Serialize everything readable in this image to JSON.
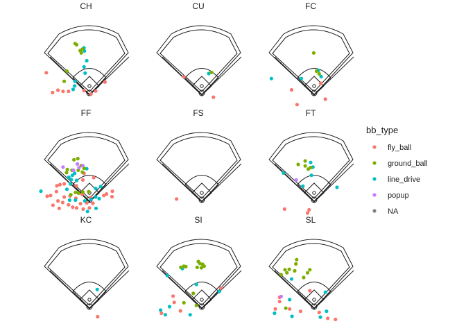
{
  "chart_data": {
    "type": "scatter",
    "description_units": "hit coordinates (hc_x, hc_y), y inverted",
    "xlim": [
      0,
      250
    ],
    "ylim": [
      -250,
      0
    ],
    "legend": {
      "title": "bb_type",
      "position": "right",
      "entries": [
        {
          "label": "fly_ball",
          "color": "#F8766D"
        },
        {
          "label": "ground_ball",
          "color": "#7CAE00"
        },
        {
          "label": "line_drive",
          "color": "#00BFC4"
        },
        {
          "label": "popup",
          "color": "#C77CFF"
        },
        {
          "label": "NA",
          "color": "#7F7F7F"
        }
      ]
    },
    "panels": [
      {
        "label": "CH",
        "points": [
          {
            "x": 30,
            "y": -215,
            "type": "fly_ball"
          },
          {
            "x": 44,
            "y": -209,
            "type": "fly_ball"
          },
          {
            "x": 57,
            "y": -212,
            "type": "fly_ball"
          },
          {
            "x": 71,
            "y": -212,
            "type": "fly_ball"
          },
          {
            "x": 111,
            "y": -210,
            "type": "fly_ball"
          },
          {
            "x": 129,
            "y": -219,
            "type": "fly_ball"
          },
          {
            "x": 141,
            "y": -211,
            "type": "fly_ball"
          },
          {
            "x": 165,
            "y": -188,
            "type": "fly_ball"
          },
          {
            "x": 14,
            "y": -164,
            "type": "fly_ball"
          },
          {
            "x": 83,
            "y": -207,
            "type": "line_drive"
          },
          {
            "x": 87,
            "y": -198,
            "type": "line_drive"
          },
          {
            "x": 88,
            "y": -186,
            "type": "line_drive"
          },
          {
            "x": 114,
            "y": -165,
            "type": "line_drive"
          },
          {
            "x": 111,
            "y": -149,
            "type": "line_drive"
          },
          {
            "x": 118,
            "y": -133,
            "type": "line_drive"
          },
          {
            "x": 112,
            "y": -108,
            "type": "line_drive"
          },
          {
            "x": 111,
            "y": -100,
            "type": "line_drive"
          },
          {
            "x": 60,
            "y": -186,
            "type": "ground_ball"
          },
          {
            "x": 67,
            "y": -160,
            "type": "ground_ball"
          },
          {
            "x": 104,
            "y": -113,
            "type": "ground_ball"
          },
          {
            "x": 101,
            "y": -107,
            "type": "ground_ball"
          },
          {
            "x": 107,
            "y": -103,
            "type": "ground_ball"
          },
          {
            "x": 88,
            "y": -89,
            "type": "ground_ball"
          },
          {
            "x": 92,
            "y": -92,
            "type": "ground_ball"
          }
        ]
      },
      {
        "label": "CU",
        "points": [
          {
            "x": 155,
            "y": -227,
            "type": "fly_ball"
          },
          {
            "x": 79,
            "y": -175,
            "type": "fly_ball"
          },
          {
            "x": 143,
            "y": -166,
            "type": "line_drive"
          },
          {
            "x": 150,
            "y": -163,
            "type": "ground_ball"
          }
        ]
      },
      {
        "label": "FC",
        "points": [
          {
            "x": 81,
            "y": -246,
            "type": "fly_ball"
          },
          {
            "x": 154,
            "y": -232,
            "type": "fly_ball"
          },
          {
            "x": 67,
            "y": -208,
            "type": "fly_ball"
          },
          {
            "x": 142,
            "y": -191,
            "type": "fly_ball"
          },
          {
            "x": 15,
            "y": -179,
            "type": "line_drive"
          },
          {
            "x": 92,
            "y": -179,
            "type": "line_drive"
          },
          {
            "x": 143,
            "y": -174,
            "type": "line_drive"
          },
          {
            "x": 136,
            "y": -158,
            "type": "line_drive"
          },
          {
            "x": 138,
            "y": -167,
            "type": "ground_ball"
          },
          {
            "x": 131,
            "y": -160,
            "type": "ground_ball"
          },
          {
            "x": 124,
            "y": -113,
            "type": "ground_ball"
          }
        ]
      },
      {
        "label": "FF",
        "points": [
          {
            "x": 47,
            "y": -238,
            "type": "fly_ball"
          },
          {
            "x": 82,
            "y": -235,
            "type": "fly_ball"
          },
          {
            "x": 92,
            "y": -237,
            "type": "fly_ball"
          },
          {
            "x": 109,
            "y": -240,
            "type": "fly_ball"
          },
          {
            "x": 125,
            "y": -237,
            "type": "fly_ball"
          },
          {
            "x": 31,
            "y": -230,
            "type": "fly_ball"
          },
          {
            "x": 44,
            "y": -219,
            "type": "fly_ball"
          },
          {
            "x": 56,
            "y": -223,
            "type": "fly_ball"
          },
          {
            "x": 71,
            "y": -229,
            "type": "fly_ball"
          },
          {
            "x": 102,
            "y": -226,
            "type": "fly_ball"
          },
          {
            "x": 118,
            "y": -224,
            "type": "fly_ball"
          },
          {
            "x": 134,
            "y": -225,
            "type": "fly_ball"
          },
          {
            "x": 60,
            "y": -209,
            "type": "fly_ball"
          },
          {
            "x": 75,
            "y": -206,
            "type": "fly_ball"
          },
          {
            "x": 90,
            "y": -212,
            "type": "fly_ball"
          },
          {
            "x": 106,
            "y": -202,
            "type": "fly_ball"
          },
          {
            "x": 128,
            "y": -210,
            "type": "fly_ball"
          },
          {
            "x": 162,
            "y": -205,
            "type": "fly_ball"
          },
          {
            "x": 169,
            "y": -201,
            "type": "fly_ball"
          },
          {
            "x": 183,
            "y": -208,
            "type": "fly_ball"
          },
          {
            "x": 184,
            "y": -194,
            "type": "fly_ball"
          },
          {
            "x": 25,
            "y": -205,
            "type": "fly_ball"
          },
          {
            "x": 16,
            "y": -207,
            "type": "fly_ball"
          },
          {
            "x": 40,
            "y": -195,
            "type": "fly_ball"
          },
          {
            "x": 41,
            "y": -180,
            "type": "fly_ball"
          },
          {
            "x": 49,
            "y": -177,
            "type": "fly_ball"
          },
          {
            "x": 60,
            "y": -175,
            "type": "fly_ball"
          },
          {
            "x": 91,
            "y": -180,
            "type": "fly_ball"
          },
          {
            "x": 108,
            "y": -165,
            "type": "fly_ball"
          },
          {
            "x": 111,
            "y": -148,
            "type": "fly_ball"
          },
          {
            "x": 136,
            "y": -159,
            "type": "fly_ball"
          },
          {
            "x": 120,
            "y": -246,
            "type": "line_drive"
          },
          {
            "x": 142,
            "y": -238,
            "type": "line_drive"
          },
          {
            "x": 74,
            "y": -217,
            "type": "line_drive"
          },
          {
            "x": 89,
            "y": -217,
            "type": "line_drive"
          },
          {
            "x": 113,
            "y": -219,
            "type": "line_drive"
          },
          {
            "x": 129,
            "y": -215,
            "type": "line_drive"
          },
          {
            "x": 141,
            "y": -209,
            "type": "line_drive"
          },
          {
            "x": 150,
            "y": -213,
            "type": "line_drive"
          },
          {
            "x": 0,
            "y": -194,
            "type": "line_drive"
          },
          {
            "x": 67,
            "y": -189,
            "type": "line_drive"
          },
          {
            "x": 141,
            "y": -187,
            "type": "line_drive"
          },
          {
            "x": 154,
            "y": -182,
            "type": "line_drive"
          },
          {
            "x": 76,
            "y": -175,
            "type": "line_drive"
          },
          {
            "x": 78,
            "y": -164,
            "type": "line_drive"
          },
          {
            "x": 72,
            "y": -158,
            "type": "line_drive"
          },
          {
            "x": 81,
            "y": -153,
            "type": "line_drive"
          },
          {
            "x": 92,
            "y": -166,
            "type": "line_drive"
          },
          {
            "x": 87,
            "y": -148,
            "type": "line_drive"
          },
          {
            "x": 118,
            "y": -136,
            "type": "line_drive"
          },
          {
            "x": 77,
            "y": -203,
            "type": "ground_ball"
          },
          {
            "x": 89,
            "y": -197,
            "type": "ground_ball"
          },
          {
            "x": 97,
            "y": -199,
            "type": "ground_ball"
          },
          {
            "x": 108,
            "y": -196,
            "type": "ground_ball"
          },
          {
            "x": 123,
            "y": -195,
            "type": "ground_ball"
          },
          {
            "x": 66,
            "y": -146,
            "type": "ground_ball"
          },
          {
            "x": 68,
            "y": -138,
            "type": "ground_ball"
          },
          {
            "x": 80,
            "y": -140,
            "type": "ground_ball"
          },
          {
            "x": 96,
            "y": -140,
            "type": "ground_ball"
          },
          {
            "x": 107,
            "y": -145,
            "type": "ground_ball"
          },
          {
            "x": 111,
            "y": -135,
            "type": "ground_ball"
          },
          {
            "x": 104,
            "y": -128,
            "type": "ground_ball"
          },
          {
            "x": 85,
            "y": -113,
            "type": "ground_ball"
          },
          {
            "x": 95,
            "y": -110,
            "type": "ground_ball"
          },
          {
            "x": 57,
            "y": -132,
            "type": "popup"
          },
          {
            "x": 84,
            "y": -140,
            "type": "popup"
          },
          {
            "x": 98,
            "y": -133,
            "type": "popup"
          },
          {
            "x": 108,
            "y": -128,
            "type": "popup"
          },
          {
            "x": 94,
            "y": -124,
            "type": "popup"
          }
        ]
      },
      {
        "label": "FS",
        "points": [
          {
            "x": 60,
            "y": -214,
            "type": "fly_ball"
          }
        ]
      },
      {
        "label": "FT",
        "points": [
          {
            "x": 108,
            "y": -250,
            "type": "fly_ball"
          },
          {
            "x": 112,
            "y": -242,
            "type": "fly_ball"
          },
          {
            "x": 49,
            "y": -240,
            "type": "fly_ball"
          },
          {
            "x": 96,
            "y": -181,
            "type": "line_drive"
          },
          {
            "x": 184,
            "y": -184,
            "type": "line_drive"
          },
          {
            "x": 46,
            "y": -147,
            "type": "line_drive"
          },
          {
            "x": 118,
            "y": -153,
            "type": "line_drive"
          },
          {
            "x": 122,
            "y": -132,
            "type": "line_drive"
          },
          {
            "x": 116,
            "y": -120,
            "type": "line_drive"
          },
          {
            "x": 110,
            "y": -137,
            "type": "ground_ball"
          },
          {
            "x": 102,
            "y": -129,
            "type": "ground_ball"
          },
          {
            "x": 116,
            "y": -133,
            "type": "ground_ball"
          },
          {
            "x": 84,
            "y": -125,
            "type": "ground_ball"
          },
          {
            "x": 102,
            "y": -116,
            "type": "ground_ball"
          },
          {
            "x": 79,
            "y": -165,
            "type": "popup"
          }
        ]
      },
      {
        "label": "KC",
        "points": [
          {
            "x": 146,
            "y": -242,
            "type": "fly_ball"
          },
          {
            "x": 145,
            "y": -172,
            "type": "line_drive"
          }
        ]
      },
      {
        "label": "SI",
        "points": [
          {
            "x": 21,
            "y": -233,
            "type": "fly_ball"
          },
          {
            "x": 70,
            "y": -227,
            "type": "fly_ball"
          },
          {
            "x": 54,
            "y": -205,
            "type": "fly_ball"
          },
          {
            "x": 51,
            "y": -189,
            "type": "fly_ball"
          },
          {
            "x": 174,
            "y": -168,
            "type": "fly_ball"
          },
          {
            "x": 31,
            "y": -237,
            "type": "line_drive"
          },
          {
            "x": 95,
            "y": -237,
            "type": "line_drive"
          },
          {
            "x": 19,
            "y": -225,
            "type": "line_drive"
          },
          {
            "x": 42,
            "y": -216,
            "type": "line_drive"
          },
          {
            "x": 170,
            "y": -177,
            "type": "line_drive"
          },
          {
            "x": 111,
            "y": -159,
            "type": "line_drive"
          },
          {
            "x": 36,
            "y": -136,
            "type": "line_drive"
          },
          {
            "x": 75,
            "y": -118,
            "type": "line_drive"
          },
          {
            "x": 79,
            "y": -206,
            "type": "ground_ball"
          },
          {
            "x": 111,
            "y": -213,
            "type": "ground_ball"
          },
          {
            "x": 103,
            "y": -182,
            "type": "ground_ball"
          },
          {
            "x": 71,
            "y": -115,
            "type": "ground_ball"
          },
          {
            "x": 79,
            "y": -112,
            "type": "ground_ball"
          },
          {
            "x": 84,
            "y": -113,
            "type": "ground_ball"
          },
          {
            "x": 113,
            "y": -115,
            "type": "ground_ball"
          },
          {
            "x": 124,
            "y": -116,
            "type": "ground_ball"
          },
          {
            "x": 131,
            "y": -112,
            "type": "ground_ball"
          },
          {
            "x": 127,
            "y": -107,
            "type": "ground_ball"
          },
          {
            "x": 120,
            "y": -105,
            "type": "ground_ball"
          },
          {
            "x": 116,
            "y": -100,
            "type": "ground_ball"
          }
        ]
      },
      {
        "label": "SL",
        "points": [
          {
            "x": 160,
            "y": -246,
            "type": "fly_ball"
          },
          {
            "x": 180,
            "y": -249,
            "type": "fly_ball"
          },
          {
            "x": 25,
            "y": -222,
            "type": "fly_ball"
          },
          {
            "x": 62,
            "y": -222,
            "type": "fly_ball"
          },
          {
            "x": 90,
            "y": -228,
            "type": "fly_ball"
          },
          {
            "x": 138,
            "y": -231,
            "type": "fly_ball"
          },
          {
            "x": 36,
            "y": -203,
            "type": "fly_ball"
          },
          {
            "x": 36,
            "y": -192,
            "type": "fly_ball"
          },
          {
            "x": 114,
            "y": -175,
            "type": "fly_ball"
          },
          {
            "x": 141,
            "y": -243,
            "type": "line_drive"
          },
          {
            "x": 157,
            "y": -228,
            "type": "line_drive"
          },
          {
            "x": 23,
            "y": -233,
            "type": "line_drive"
          },
          {
            "x": 68,
            "y": -241,
            "type": "line_drive"
          },
          {
            "x": 62,
            "y": -198,
            "type": "line_drive"
          },
          {
            "x": 154,
            "y": -179,
            "type": "line_drive"
          },
          {
            "x": 67,
            "y": -145,
            "type": "line_drive"
          },
          {
            "x": 52,
            "y": -220,
            "type": "ground_ball"
          },
          {
            "x": 40,
            "y": -134,
            "type": "ground_ball"
          },
          {
            "x": 55,
            "y": -129,
            "type": "ground_ball"
          },
          {
            "x": 50,
            "y": -121,
            "type": "ground_ball"
          },
          {
            "x": 61,
            "y": -120,
            "type": "ground_ball"
          },
          {
            "x": 75,
            "y": -124,
            "type": "ground_ball"
          },
          {
            "x": 98,
            "y": -141,
            "type": "ground_ball"
          },
          {
            "x": 108,
            "y": -129,
            "type": "ground_ball"
          },
          {
            "x": 114,
            "y": -121,
            "type": "ground_ball"
          },
          {
            "x": 78,
            "y": -106,
            "type": "ground_ball"
          },
          {
            "x": 80,
            "y": -95,
            "type": "ground_ball"
          },
          {
            "x": 40,
            "y": -190,
            "type": "popup"
          }
        ]
      }
    ]
  }
}
